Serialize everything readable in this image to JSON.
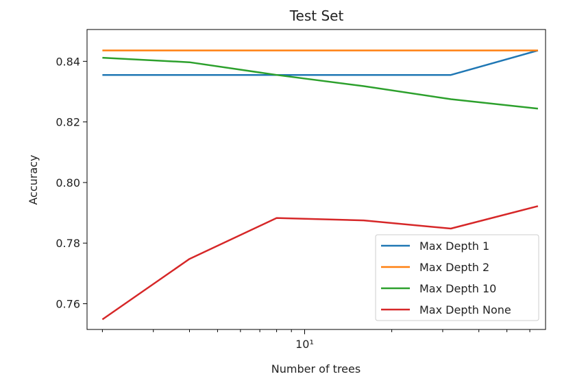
{
  "chart_data": {
    "type": "line",
    "title": "Test Set",
    "xlabel": "Number of trees",
    "ylabel": "Accuracy",
    "x_scale": "log",
    "x": [
      2,
      4,
      8,
      16,
      32,
      64
    ],
    "xlim": [
      1.77,
      68
    ],
    "ylim": [
      0.7515,
      0.8505
    ],
    "y_ticks": [
      0.76,
      0.78,
      0.8,
      0.82,
      0.84
    ],
    "y_tick_labels": [
      "0.76",
      "0.78",
      "0.80",
      "0.82",
      "0.84"
    ],
    "x_major_ticks": [
      10
    ],
    "x_major_tick_labels": [
      "10¹"
    ],
    "x_minor_ticks": [
      2,
      3,
      4,
      5,
      6,
      7,
      8,
      9,
      20,
      30,
      40,
      50,
      60
    ],
    "grid": false,
    "legend_position": "lower-right",
    "series": [
      {
        "name": "Max Depth 1",
        "color": "#1f77b4",
        "values": [
          0.8355,
          0.8355,
          0.8355,
          0.8355,
          0.8355,
          0.8436
        ]
      },
      {
        "name": "Max Depth 2",
        "color": "#ff7f0e",
        "values": [
          0.8436,
          0.8436,
          0.8436,
          0.8436,
          0.8436,
          0.8436
        ]
      },
      {
        "name": "Max Depth 10",
        "color": "#2ca02c",
        "values": [
          0.8412,
          0.8397,
          0.8355,
          0.8318,
          0.8275,
          0.8244
        ]
      },
      {
        "name": "Max Depth None",
        "color": "#d62728",
        "values": [
          0.7548,
          0.7748,
          0.7883,
          0.7875,
          0.7848,
          0.7922
        ]
      }
    ]
  }
}
